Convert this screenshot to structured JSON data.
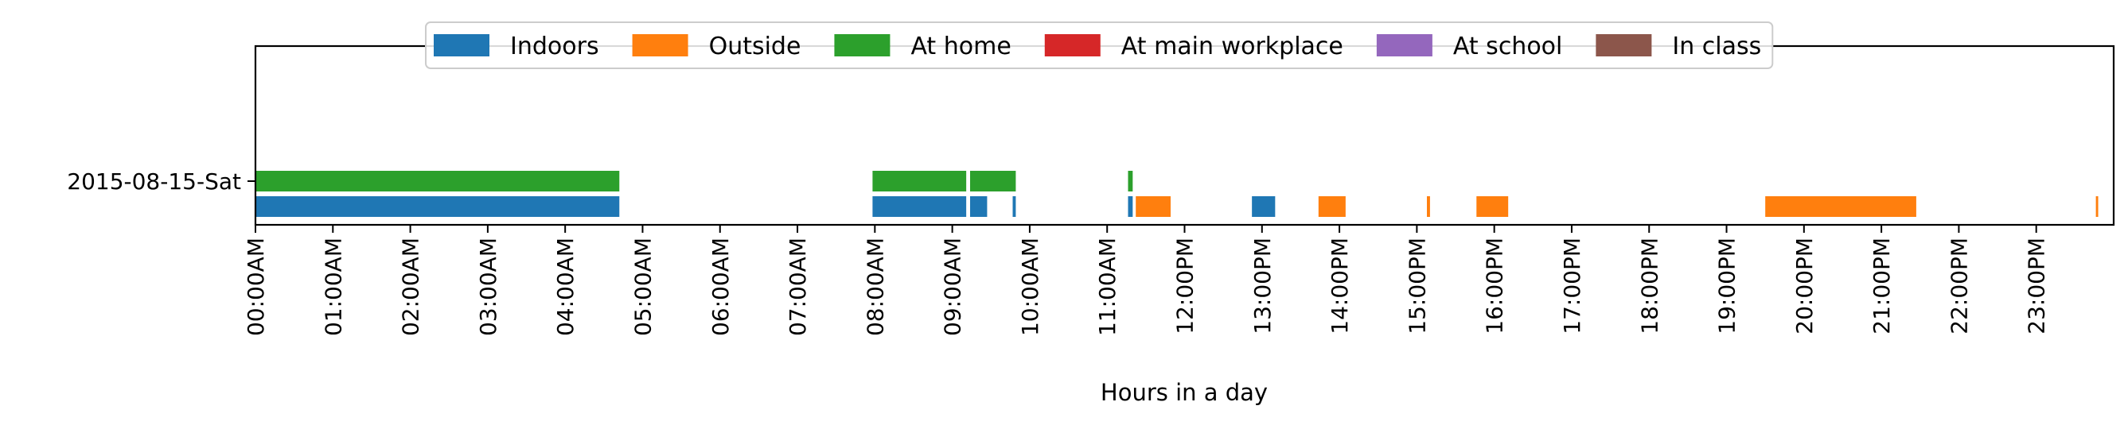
{
  "chart_data": {
    "type": "bar",
    "orientation": "horizontal-timeline",
    "title": "",
    "xlabel": "Hours in a day",
    "ylabel": "",
    "xlim": [
      0,
      24
    ],
    "grid": false,
    "legend_placement": "upper-center",
    "y_categories": [
      "2015-08-15-Sat"
    ],
    "x_ticks": [
      {
        "value": 0,
        "label": "00:00AM"
      },
      {
        "value": 1,
        "label": "01:00AM"
      },
      {
        "value": 2,
        "label": "02:00AM"
      },
      {
        "value": 3,
        "label": "03:00AM"
      },
      {
        "value": 4,
        "label": "04:00AM"
      },
      {
        "value": 5,
        "label": "05:00AM"
      },
      {
        "value": 6,
        "label": "06:00AM"
      },
      {
        "value": 7,
        "label": "07:00AM"
      },
      {
        "value": 8,
        "label": "08:00AM"
      },
      {
        "value": 9,
        "label": "09:00AM"
      },
      {
        "value": 10,
        "label": "10:00AM"
      },
      {
        "value": 11,
        "label": "11:00AM"
      },
      {
        "value": 12,
        "label": "12:00PM"
      },
      {
        "value": 13,
        "label": "13:00PM"
      },
      {
        "value": 14,
        "label": "14:00PM"
      },
      {
        "value": 15,
        "label": "15:00PM"
      },
      {
        "value": 16,
        "label": "16:00PM"
      },
      {
        "value": 17,
        "label": "17:00PM"
      },
      {
        "value": 18,
        "label": "18:00PM"
      },
      {
        "value": 19,
        "label": "19:00PM"
      },
      {
        "value": 20,
        "label": "20:00PM"
      },
      {
        "value": 21,
        "label": "21:00PM"
      },
      {
        "value": 22,
        "label": "22:00PM"
      },
      {
        "value": 23,
        "label": "23:00PM"
      }
    ],
    "series": [
      {
        "name": "Indoors",
        "color": "#1f77b4",
        "lane": "lower",
        "intervals": [
          [
            0.0,
            4.7
          ],
          [
            7.97,
            9.18
          ],
          [
            9.23,
            9.45
          ],
          [
            9.78,
            9.82
          ],
          [
            11.27,
            11.33
          ],
          [
            12.87,
            13.17
          ]
        ]
      },
      {
        "name": "Outside",
        "color": "#ff7f0e",
        "lane": "lower",
        "intervals": [
          [
            11.37,
            11.82
          ],
          [
            13.73,
            14.08
          ],
          [
            15.13,
            15.17
          ],
          [
            15.77,
            16.18
          ],
          [
            19.5,
            21.45
          ],
          [
            23.77,
            23.8
          ]
        ]
      },
      {
        "name": "At home",
        "color": "#2ca02c",
        "lane": "upper",
        "intervals": [
          [
            0.0,
            4.7
          ],
          [
            7.97,
            9.18
          ],
          [
            9.23,
            9.82
          ],
          [
            11.27,
            11.33
          ]
        ]
      },
      {
        "name": "At main workplace",
        "color": "#d62728",
        "lane": "upper",
        "intervals": []
      },
      {
        "name": "At school",
        "color": "#9467bd",
        "lane": "upper",
        "intervals": []
      },
      {
        "name": "In class",
        "color": "#8c564b",
        "lane": "upper",
        "intervals": []
      }
    ]
  }
}
